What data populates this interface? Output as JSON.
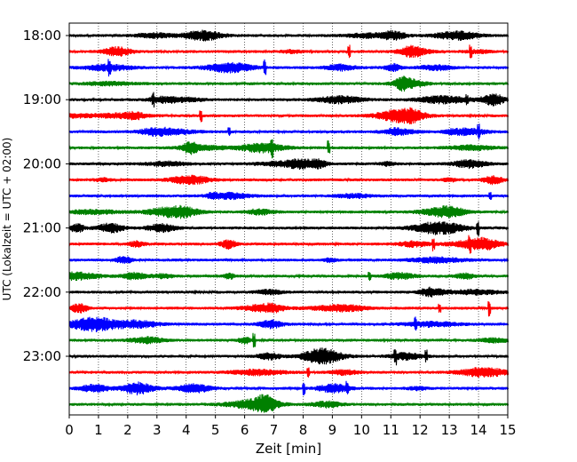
{
  "chart_data": {
    "type": "line",
    "title": "",
    "xlabel": "Zeit  [min]",
    "ylabel": "UTC (Lokalzeit = UTC + 02:00)",
    "xlim": [
      0,
      15
    ],
    "x_ticks": [
      0,
      1,
      2,
      3,
      4,
      5,
      6,
      7,
      8,
      9,
      10,
      11,
      12,
      13,
      14,
      15
    ],
    "x_tick_labels": [
      "0",
      "1",
      "2",
      "3",
      "4",
      "5",
      "6",
      "7",
      "8",
      "9",
      "10",
      "11",
      "12",
      "13",
      "14",
      "15"
    ],
    "y_tick_labels": [
      "18:00",
      "19:00",
      "20:00",
      "21:00",
      "22:00",
      "23:00"
    ],
    "trace_minutes_per_row": 15,
    "trace_start_times": [
      "18:00",
      "18:15",
      "18:30",
      "18:45",
      "19:00",
      "19:15",
      "19:30",
      "19:45",
      "20:00",
      "20:15",
      "20:30",
      "20:45",
      "21:00",
      "21:15",
      "21:30",
      "21:45",
      "22:00",
      "22:15",
      "22:30",
      "22:45",
      "23:00",
      "23:15",
      "23:30",
      "23:45"
    ],
    "trace_colors_cycle": [
      "#000000",
      "#ff0000",
      "#0000ff",
      "#008000"
    ],
    "vertical_grid": "dotted at each minute",
    "legend": "none"
  }
}
